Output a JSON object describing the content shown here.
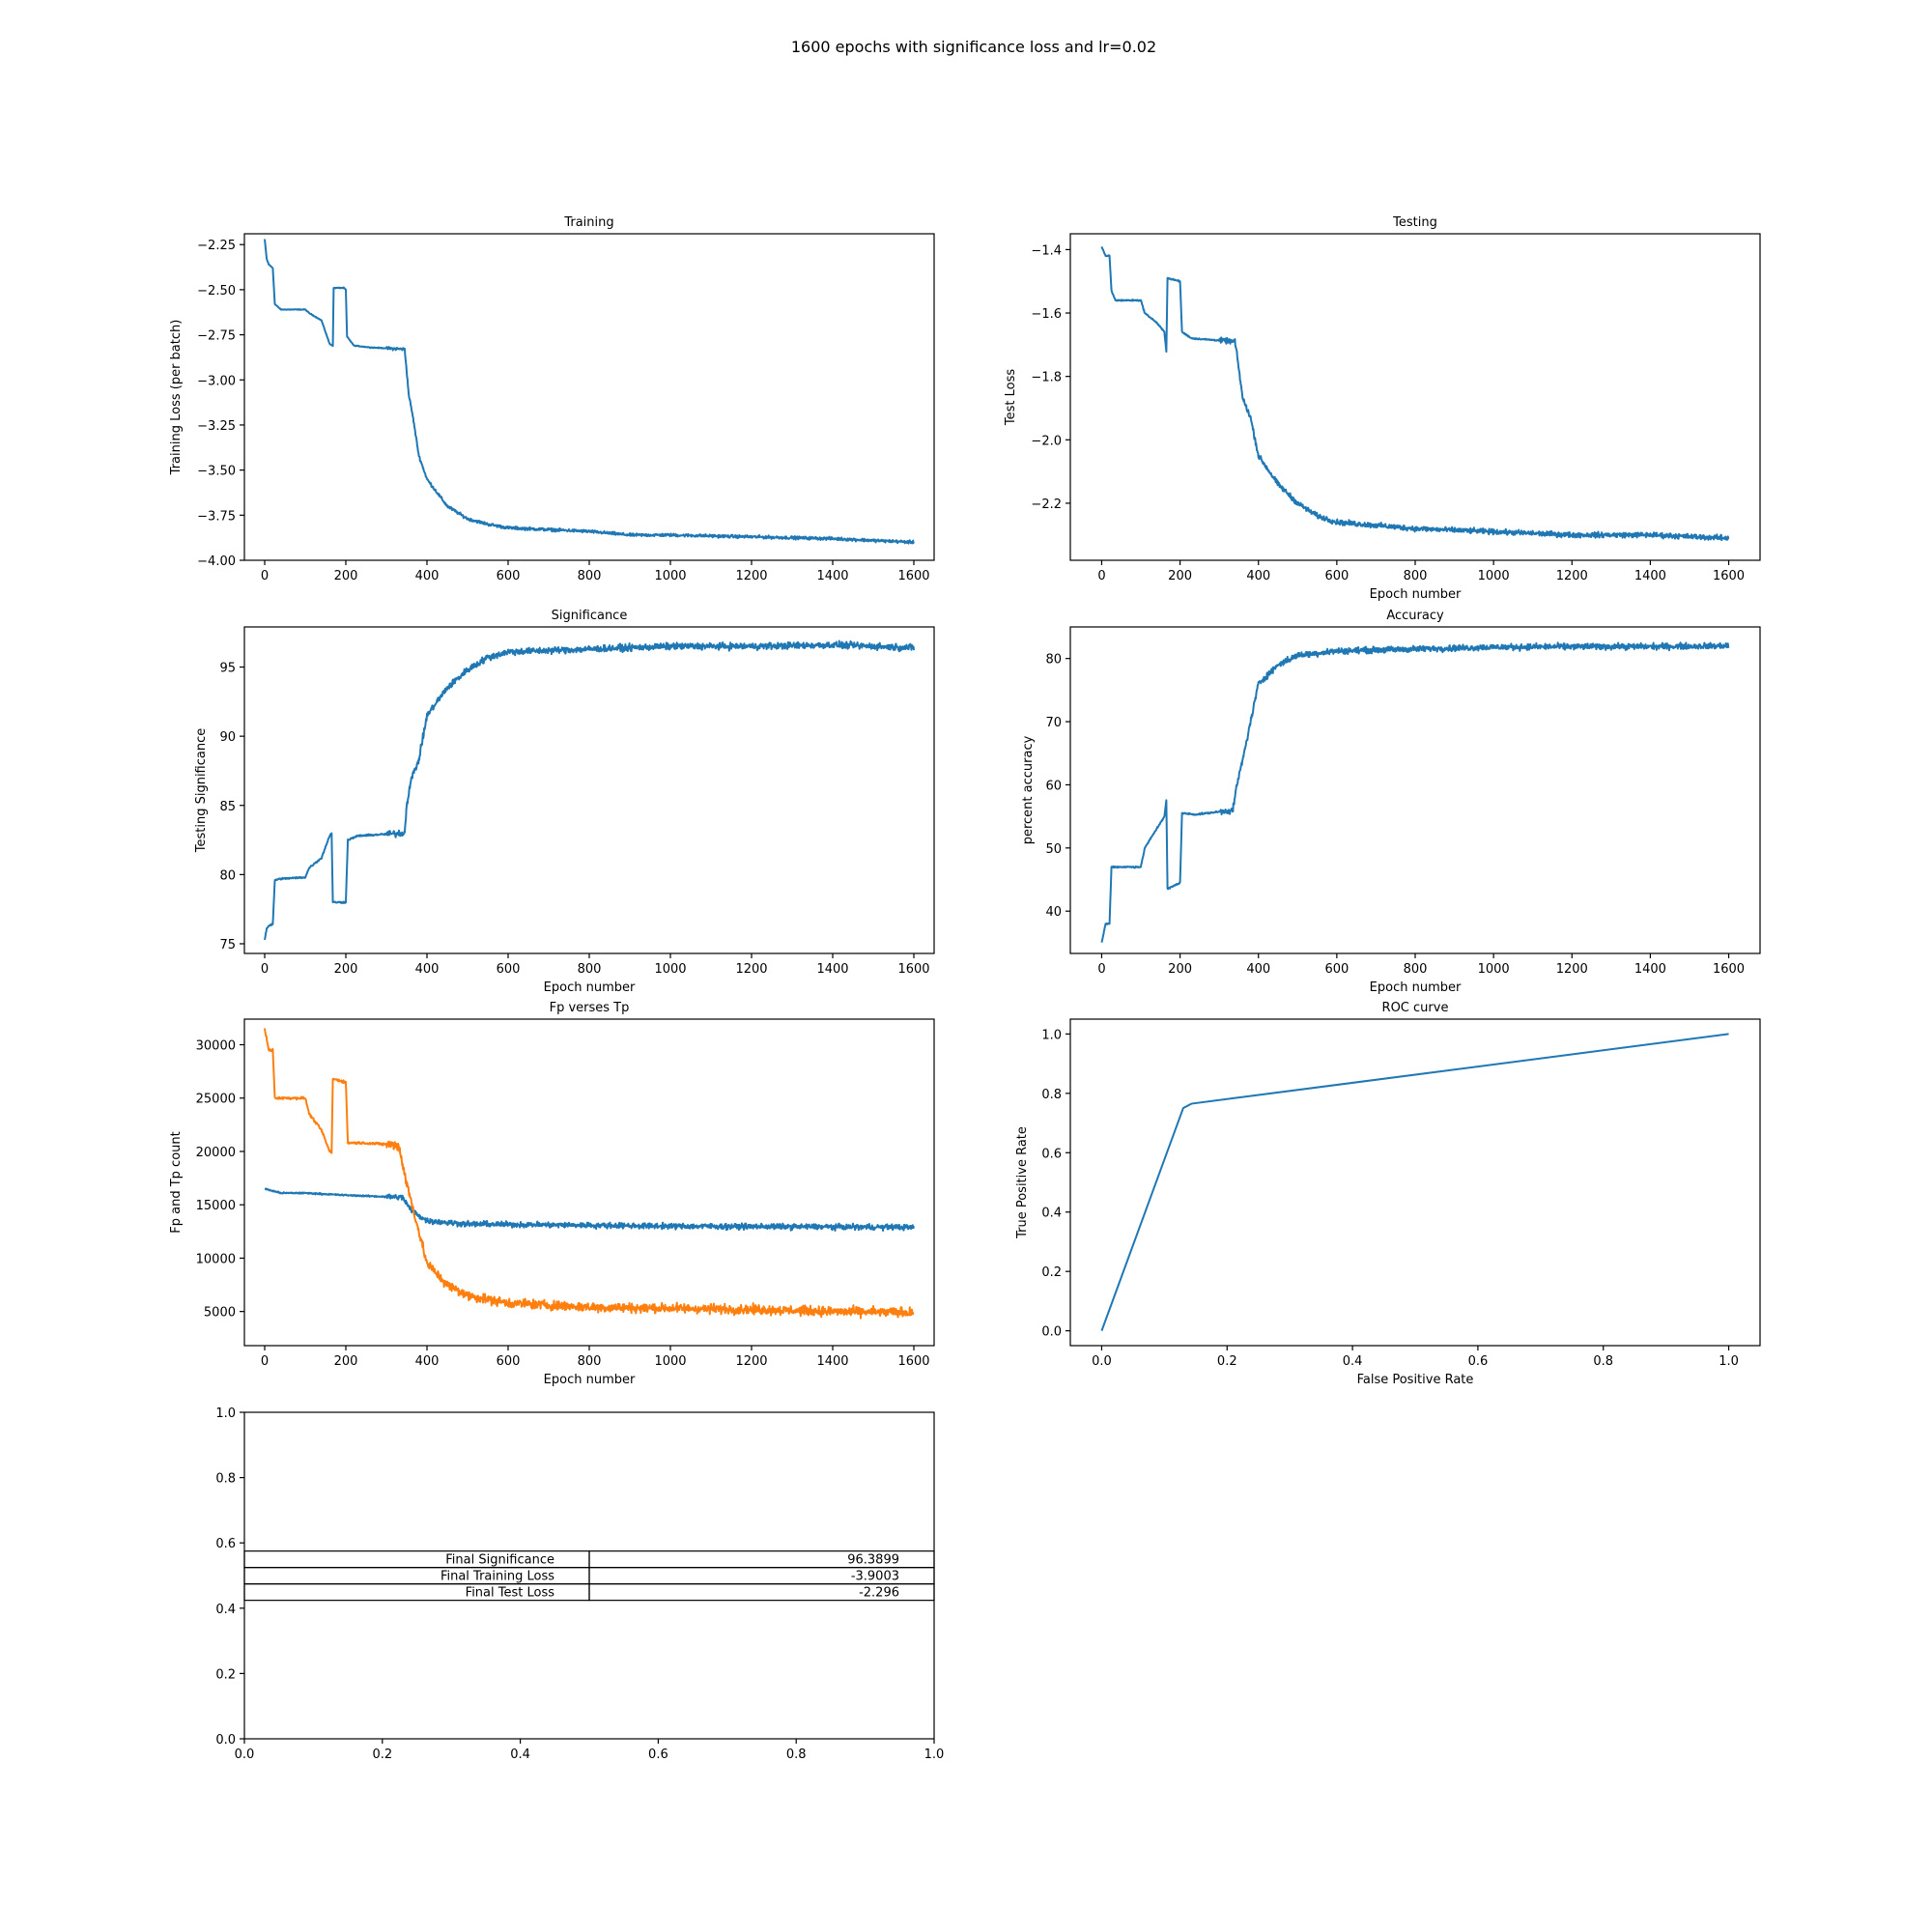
{
  "figure": {
    "suptitle": "1600 epochs with significance loss and lr=0.02"
  },
  "chart_data": [
    {
      "type": "line",
      "title": "Training",
      "xlabel": "",
      "ylabel": "Training Loss (per batch)",
      "xlim": [
        -50,
        1650
      ],
      "ylim": [
        -4.0,
        -2.19
      ],
      "xticks": [
        0,
        200,
        400,
        600,
        800,
        1000,
        1200,
        1400,
        1600
      ],
      "yticks": [
        -4.0,
        -3.75,
        -3.5,
        -3.25,
        -3.0,
        -2.75,
        -2.5,
        -2.25
      ],
      "ytick_labels": [
        "−4.00",
        "−3.75",
        "−3.50",
        "−3.25",
        "−3.00",
        "−2.75",
        "−2.50",
        "−2.25"
      ],
      "grid": false,
      "series": [
        {
          "color": "#1f77b4",
          "noise": 0.012,
          "points": [
            [
              0,
              -2.22
            ],
            [
              5,
              -2.33
            ],
            [
              10,
              -2.36
            ],
            [
              20,
              -2.38
            ],
            [
              25,
              -2.58
            ],
            [
              40,
              -2.61
            ],
            [
              100,
              -2.61
            ],
            [
              110,
              -2.63
            ],
            [
              140,
              -2.67
            ],
            [
              160,
              -2.8
            ],
            [
              168,
              -2.81
            ],
            [
              170,
              -2.49
            ],
            [
              195,
              -2.49
            ],
            [
              200,
              -2.5
            ],
            [
              203,
              -2.76
            ],
            [
              220,
              -2.81
            ],
            [
              260,
              -2.82
            ],
            [
              345,
              -2.83
            ],
            [
              350,
              -2.95
            ],
            [
              355,
              -3.08
            ],
            [
              365,
              -3.2
            ],
            [
              380,
              -3.42
            ],
            [
              400,
              -3.55
            ],
            [
              450,
              -3.7
            ],
            [
              500,
              -3.77
            ],
            [
              550,
              -3.8
            ],
            [
              600,
              -3.82
            ],
            [
              700,
              -3.83
            ],
            [
              800,
              -3.84
            ],
            [
              900,
              -3.86
            ],
            [
              1000,
              -3.86
            ],
            [
              1200,
              -3.87
            ],
            [
              1400,
              -3.88
            ],
            [
              1600,
              -3.9
            ]
          ]
        }
      ]
    },
    {
      "type": "line",
      "title": "Testing",
      "xlabel": "Epoch number",
      "ylabel": "Test Loss",
      "xlim": [
        -80,
        1680
      ],
      "ylim": [
        -2.38,
        -1.35
      ],
      "xticks": [
        0,
        200,
        400,
        600,
        800,
        1000,
        1200,
        1400,
        1600
      ],
      "yticks": [
        -2.2,
        -2.0,
        -1.8,
        -1.6,
        -1.4
      ],
      "ytick_labels": [
        "−2.2",
        "−2.0",
        "−1.8",
        "−1.6",
        "−1.4"
      ],
      "grid": false,
      "series": [
        {
          "color": "#1f77b4",
          "noise": 0.012,
          "points": [
            [
              0,
              -1.39
            ],
            [
              10,
              -1.42
            ],
            [
              20,
              -1.42
            ],
            [
              25,
              -1.53
            ],
            [
              35,
              -1.56
            ],
            [
              100,
              -1.56
            ],
            [
              110,
              -1.6
            ],
            [
              140,
              -1.63
            ],
            [
              160,
              -1.66
            ],
            [
              165,
              -1.72
            ],
            [
              168,
              -1.49
            ],
            [
              200,
              -1.5
            ],
            [
              205,
              -1.66
            ],
            [
              230,
              -1.68
            ],
            [
              340,
              -1.69
            ],
            [
              345,
              -1.73
            ],
            [
              360,
              -1.87
            ],
            [
              380,
              -1.93
            ],
            [
              400,
              -2.05
            ],
            [
              450,
              -2.14
            ],
            [
              500,
              -2.2
            ],
            [
              550,
              -2.24
            ],
            [
              600,
              -2.26
            ],
            [
              700,
              -2.27
            ],
            [
              800,
              -2.28
            ],
            [
              1000,
              -2.29
            ],
            [
              1200,
              -2.3
            ],
            [
              1400,
              -2.3
            ],
            [
              1600,
              -2.31
            ]
          ]
        }
      ]
    },
    {
      "type": "line",
      "title": "Significance",
      "xlabel": "Epoch number",
      "ylabel": "Testing Significance",
      "xlim": [
        -50,
        1650
      ],
      "ylim": [
        74.3,
        97.9
      ],
      "xticks": [
        0,
        200,
        400,
        600,
        800,
        1000,
        1200,
        1400,
        1600
      ],
      "yticks": [
        75,
        80,
        85,
        90,
        95
      ],
      "ytick_labels": [
        "75",
        "80",
        "85",
        "90",
        "95"
      ],
      "grid": false,
      "series": [
        {
          "color": "#1f77b4",
          "noise": 0.35,
          "points": [
            [
              0,
              75.3
            ],
            [
              5,
              76.1
            ],
            [
              10,
              76.3
            ],
            [
              20,
              76.4
            ],
            [
              25,
              79.6
            ],
            [
              40,
              79.7
            ],
            [
              100,
              79.8
            ],
            [
              110,
              80.5
            ],
            [
              140,
              81.2
            ],
            [
              160,
              82.8
            ],
            [
              165,
              83.0
            ],
            [
              168,
              78.0
            ],
            [
              200,
              78.0
            ],
            [
              205,
              82.5
            ],
            [
              230,
              82.8
            ],
            [
              345,
              83.0
            ],
            [
              350,
              85.0
            ],
            [
              360,
              86.8
            ],
            [
              380,
              88.3
            ],
            [
              400,
              91.5
            ],
            [
              450,
              93.5
            ],
            [
              500,
              94.8
            ],
            [
              550,
              95.7
            ],
            [
              600,
              96.1
            ],
            [
              700,
              96.2
            ],
            [
              800,
              96.3
            ],
            [
              1000,
              96.5
            ],
            [
              1200,
              96.5
            ],
            [
              1400,
              96.6
            ],
            [
              1600,
              96.4
            ]
          ]
        }
      ]
    },
    {
      "type": "line",
      "title": "Accuracy",
      "xlabel": "Epoch number",
      "ylabel": "percent accuracy",
      "xlim": [
        -80,
        1680
      ],
      "ylim": [
        33.3,
        85.0
      ],
      "xticks": [
        0,
        200,
        400,
        600,
        800,
        1000,
        1200,
        1400,
        1600
      ],
      "yticks": [
        40,
        50,
        60,
        70,
        80
      ],
      "ytick_labels": [
        "40",
        "50",
        "60",
        "70",
        "80"
      ],
      "grid": false,
      "series": [
        {
          "color": "#1f77b4",
          "noise": 0.7,
          "points": [
            [
              0,
              35.0
            ],
            [
              5,
              36.5
            ],
            [
              10,
              38.0
            ],
            [
              20,
              38.0
            ],
            [
              25,
              47.0
            ],
            [
              100,
              47.0
            ],
            [
              110,
              50.0
            ],
            [
              140,
              53.0
            ],
            [
              160,
              55.0
            ],
            [
              165,
              57.5
            ],
            [
              168,
              43.5
            ],
            [
              200,
              44.5
            ],
            [
              205,
              55.5
            ],
            [
              240,
              55.3
            ],
            [
              335,
              56.0
            ],
            [
              345,
              60.0
            ],
            [
              360,
              64.0
            ],
            [
              380,
              70.0
            ],
            [
              400,
              76.0
            ],
            [
              450,
              79.0
            ],
            [
              500,
              80.5
            ],
            [
              600,
              81.2
            ],
            [
              800,
              81.5
            ],
            [
              1000,
              81.8
            ],
            [
              1200,
              81.9
            ],
            [
              1400,
              81.9
            ],
            [
              1600,
              82.0
            ]
          ]
        }
      ]
    },
    {
      "type": "line",
      "title": "Fp verses Tp",
      "xlabel": "Epoch number",
      "ylabel": "Fp and Tp count",
      "xlim": [
        -50,
        1650
      ],
      "ylim": [
        1800,
        32400
      ],
      "xticks": [
        0,
        200,
        400,
        600,
        800,
        1000,
        1200,
        1400,
        1600
      ],
      "yticks": [
        5000,
        10000,
        15000,
        20000,
        25000,
        30000
      ],
      "ytick_labels": [
        "5000",
        "10000",
        "15000",
        "20000",
        "25000",
        "30000"
      ],
      "grid": false,
      "series": [
        {
          "color": "#1f77b4",
          "noise": 380,
          "points": [
            [
              0,
              16500
            ],
            [
              20,
              16300
            ],
            [
              40,
              16100
            ],
            [
              100,
              16100
            ],
            [
              200,
              15900
            ],
            [
              340,
              15700
            ],
            [
              360,
              14500
            ],
            [
              400,
              13500
            ],
            [
              500,
              13200
            ],
            [
              1000,
              13000
            ],
            [
              1600,
              12900
            ]
          ]
        },
        {
          "color": "#ff7f0e",
          "noise": 650,
          "points": [
            [
              0,
              31500
            ],
            [
              10,
              29500
            ],
            [
              20,
              29500
            ],
            [
              25,
              25000
            ],
            [
              100,
              25000
            ],
            [
              110,
              23500
            ],
            [
              140,
              22000
            ],
            [
              160,
              20000
            ],
            [
              165,
              19900
            ],
            [
              168,
              26800
            ],
            [
              200,
              26500
            ],
            [
              205,
              20800
            ],
            [
              240,
              20800
            ],
            [
              330,
              20600
            ],
            [
              350,
              17000
            ],
            [
              370,
              14000
            ],
            [
              400,
              9500
            ],
            [
              450,
              7500
            ],
            [
              500,
              6500
            ],
            [
              600,
              5800
            ],
            [
              800,
              5400
            ],
            [
              1000,
              5300
            ],
            [
              1200,
              5200
            ],
            [
              1400,
              5000
            ],
            [
              1600,
              4900
            ]
          ]
        }
      ]
    },
    {
      "type": "line",
      "title": "ROC curve",
      "xlabel": "False Positive Rate",
      "ylabel": "True Positive Rate",
      "xlim": [
        -0.05,
        1.05
      ],
      "ylim": [
        -0.05,
        1.05
      ],
      "xticks": [
        0.0,
        0.2,
        0.4,
        0.6,
        0.8,
        1.0
      ],
      "xtick_labels": [
        "0.0",
        "0.2",
        "0.4",
        "0.6",
        "0.8",
        "1.0"
      ],
      "yticks": [
        0.0,
        0.2,
        0.4,
        0.6,
        0.8,
        1.0
      ],
      "ytick_labels": [
        "0.0",
        "0.2",
        "0.4",
        "0.6",
        "0.8",
        "1.0"
      ],
      "grid": false,
      "series": [
        {
          "color": "#1f77b4",
          "noise": 0,
          "points": [
            [
              0.0,
              0.0
            ],
            [
              0.13,
              0.75
            ],
            [
              0.143,
              0.765
            ],
            [
              1.0,
              1.0
            ]
          ]
        }
      ]
    },
    {
      "type": "table",
      "title": "",
      "xlim": [
        0,
        1
      ],
      "ylim": [
        0,
        1
      ],
      "xticks": [
        0.0,
        0.2,
        0.4,
        0.6,
        0.8,
        1.0
      ],
      "xtick_labels": [
        "0.0",
        "0.2",
        "0.4",
        "0.6",
        "0.8",
        "1.0"
      ],
      "yticks": [
        0.0,
        0.2,
        0.4,
        0.6,
        0.8,
        1.0
      ],
      "ytick_labels": [
        "0.0",
        "0.2",
        "0.4",
        "0.6",
        "0.8",
        "1.0"
      ],
      "rows": [
        {
          "label": "Final Significance",
          "value": "96.3899"
        },
        {
          "label": "Final Training Loss",
          "value": "-3.9003"
        },
        {
          "label": "Final Test Loss",
          "value": "-2.296"
        }
      ]
    }
  ]
}
